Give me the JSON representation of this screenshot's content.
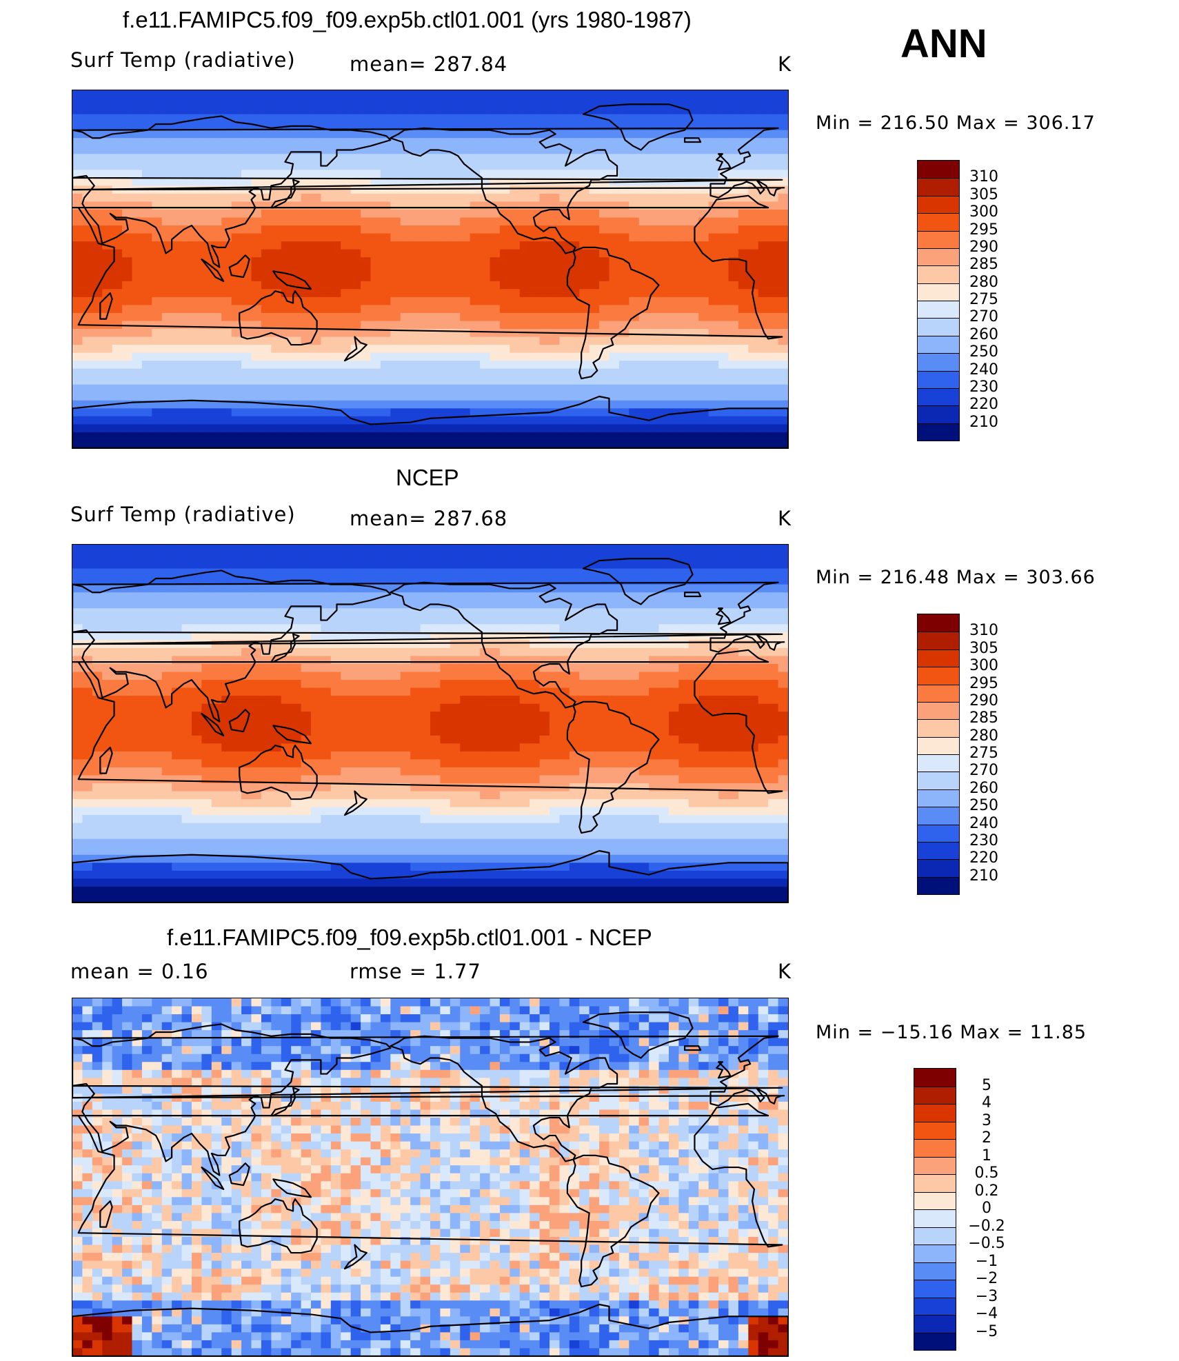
{
  "season": "ANN",
  "panels": [
    {
      "id": "model",
      "title": "f.e11.FAMIPC5.f09_f09.exp5b.ctl01.001 (yrs 1980-1987)",
      "variable": "Surf Temp (radiative)",
      "stat1": "mean=  287.84",
      "stat2": "",
      "units": "K",
      "min_max": "Min  =  216.50  Max  =  306.17",
      "colorbar": {
        "labels": [
          "310",
          "305",
          "300",
          "295",
          "290",
          "285",
          "280",
          "275",
          "270",
          "260",
          "250",
          "240",
          "230",
          "220",
          "210"
        ],
        "colors": [
          "#7f0000",
          "#b01e00",
          "#d93500",
          "#f25512",
          "#fa7a40",
          "#fca27a",
          "#fdc8a6",
          "#fde8d6",
          "#d9e9fb",
          "#b8d4fb",
          "#8cb5fb",
          "#5a8cf5",
          "#2f63ee",
          "#1841d8",
          "#0a28b4",
          "#00107a"
        ]
      },
      "contour_levels": [
        210,
        220,
        230,
        240,
        250,
        260,
        270,
        275,
        280,
        285,
        290,
        295,
        300,
        305,
        310
      ]
    },
    {
      "id": "obs",
      "title": "NCEP",
      "variable": "Surf Temp (radiative)",
      "stat1": "mean=  287.68",
      "stat2": "",
      "units": "K",
      "min_max": "Min  =  216.48  Max  =  303.66",
      "colorbar": {
        "labels": [
          "310",
          "305",
          "300",
          "295",
          "290",
          "285",
          "280",
          "275",
          "270",
          "260",
          "250",
          "240",
          "230",
          "220",
          "210"
        ],
        "colors": [
          "#7f0000",
          "#b01e00",
          "#d93500",
          "#f25512",
          "#fa7a40",
          "#fca27a",
          "#fdc8a6",
          "#fde8d6",
          "#d9e9fb",
          "#b8d4fb",
          "#8cb5fb",
          "#5a8cf5",
          "#2f63ee",
          "#1841d8",
          "#0a28b4",
          "#00107a"
        ]
      },
      "contour_levels": [
        210,
        220,
        230,
        240,
        250,
        260,
        270,
        275,
        280,
        285,
        290,
        295,
        300,
        305,
        310
      ]
    },
    {
      "id": "diff",
      "title": "f.e11.FAMIPC5.f09_f09.exp5b.ctl01.001 - NCEP",
      "variable": "mean =     0.16",
      "stat1": "rmse =     1.77",
      "stat2": "",
      "units": "K",
      "min_max": "Min  =  −15.16  Max  =    11.85",
      "colorbar": {
        "labels": [
          "5",
          "4",
          "3",
          "2",
          "1",
          "0.5",
          "0.2",
          "0",
          "−0.2",
          "−0.5",
          "−1",
          "−2",
          "−3",
          "−4",
          "−5"
        ],
        "colors": [
          "#7f0000",
          "#b01e00",
          "#d93500",
          "#f25512",
          "#fa7a40",
          "#fca27a",
          "#fdc8a6",
          "#fde8d6",
          "#d9e9fb",
          "#b8d4fb",
          "#8cb5fb",
          "#5a8cf5",
          "#2f63ee",
          "#1841d8",
          "#0a28b4",
          "#00107a"
        ]
      },
      "contour_levels": [
        -5,
        -4,
        -3,
        -2,
        -1,
        -0.5,
        -0.2,
        0,
        0.2,
        0.5,
        1,
        2,
        3,
        4,
        5
      ]
    }
  ]
}
